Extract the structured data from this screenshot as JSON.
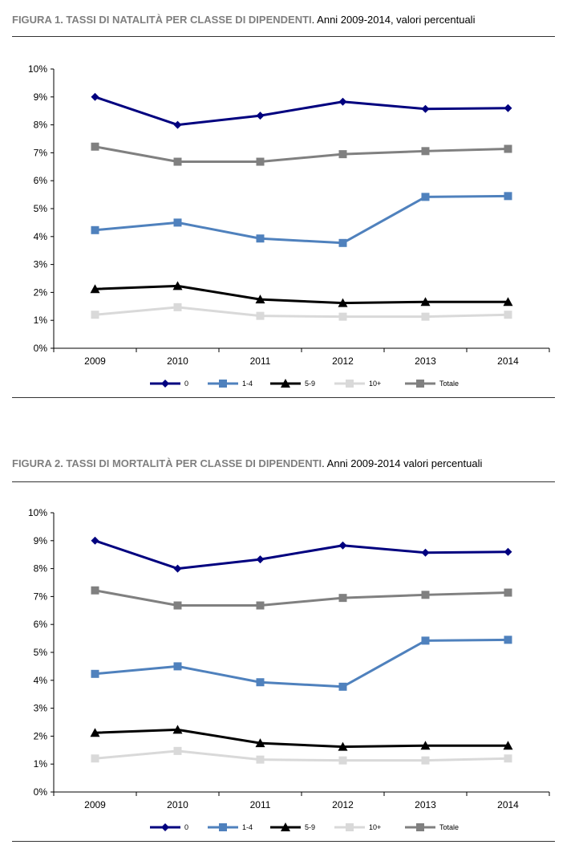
{
  "figures": [
    {
      "title_caps": "FIGURA 1. TASSI DI NATALITÀ PER CLASSE DI DIPENDENTI",
      "title_rest": ". Anni 2009-2014, valori percentuali"
    },
    {
      "title_caps": "FIGURA 2. TASSI DI MORTALITÀ PER CLASSE DI DIPENDENTI",
      "title_rest": ".  Anni 2009-2014 valori percentuali"
    }
  ],
  "chart_data": [
    {
      "type": "line",
      "title": "FIGURA 1. TASSI DI NATALITÀ PER CLASSE DI DIPENDENTI. Anni 2009-2014, valori percentuali",
      "categories": [
        "2009",
        "2010",
        "2011",
        "2012",
        "2013",
        "2014"
      ],
      "ylim": [
        0,
        10
      ],
      "yticks": [
        0,
        1,
        2,
        3,
        4,
        5,
        6,
        7,
        8,
        9,
        10
      ],
      "ytick_labels": [
        "0%",
        "1%",
        "2%",
        "3%",
        "4%",
        "5%",
        "6%",
        "7%",
        "8%",
        "9%",
        "10%"
      ],
      "grid": false,
      "legend_position": "bottom",
      "series": [
        {
          "name": "0",
          "values": [
            9.0,
            8.0,
            8.33,
            8.83,
            8.57,
            8.6
          ],
          "color": "#00007f",
          "marker": "diamond"
        },
        {
          "name": "1-4",
          "values": [
            4.23,
            4.5,
            3.93,
            3.77,
            5.42,
            5.45
          ],
          "color": "#4f81bd",
          "marker": "square"
        },
        {
          "name": "5-9",
          "values": [
            2.12,
            2.23,
            1.75,
            1.62,
            1.66,
            1.66
          ],
          "color": "#000000",
          "marker": "triangle"
        },
        {
          "name": "10+",
          "values": [
            1.2,
            1.47,
            1.16,
            1.13,
            1.13,
            1.2
          ],
          "color": "#d9d9d9",
          "marker": "square"
        },
        {
          "name": "Totale",
          "values": [
            7.22,
            6.68,
            6.68,
            6.95,
            7.06,
            7.14
          ],
          "color": "#808080",
          "marker": "square"
        }
      ]
    },
    {
      "type": "line",
      "title": "FIGURA 2. TASSI DI MORTALITÀ PER CLASSE DI DIPENDENTI.  Anni 2009-2014 valori percentuali",
      "categories": [
        "2009",
        "2010",
        "2011",
        "2012",
        "2013",
        "2014"
      ],
      "ylim": [
        0,
        10
      ],
      "yticks": [
        0,
        1,
        2,
        3,
        4,
        5,
        6,
        7,
        8,
        9,
        10
      ],
      "ytick_labels": [
        "0%",
        "1%",
        "2%",
        "3%",
        "4%",
        "5%",
        "6%",
        "7%",
        "8%",
        "9%",
        "10%"
      ],
      "grid": false,
      "legend_position": "bottom",
      "series": [
        {
          "name": "0",
          "values": [
            9.0,
            8.0,
            8.33,
            8.83,
            8.57,
            8.6
          ],
          "color": "#00007f",
          "marker": "diamond"
        },
        {
          "name": "1-4",
          "values": [
            4.23,
            4.5,
            3.93,
            3.77,
            5.42,
            5.45
          ],
          "color": "#4f81bd",
          "marker": "square"
        },
        {
          "name": "5-9",
          "values": [
            2.12,
            2.23,
            1.75,
            1.62,
            1.66,
            1.66
          ],
          "color": "#000000",
          "marker": "triangle"
        },
        {
          "name": "10+",
          "values": [
            1.2,
            1.47,
            1.16,
            1.13,
            1.13,
            1.2
          ],
          "color": "#d9d9d9",
          "marker": "square"
        },
        {
          "name": "Totale",
          "values": [
            7.22,
            6.68,
            6.68,
            6.95,
            7.06,
            7.14
          ],
          "color": "#808080",
          "marker": "square"
        }
      ]
    }
  ]
}
